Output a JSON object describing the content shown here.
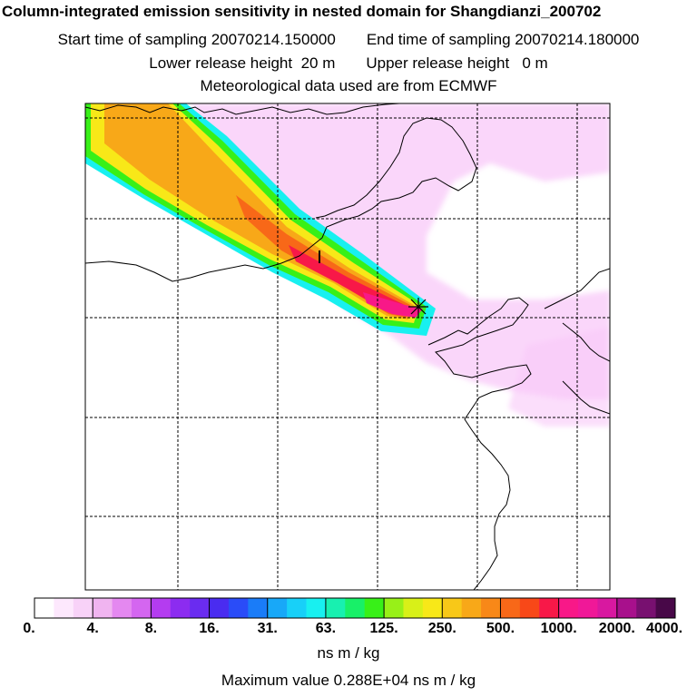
{
  "header": {
    "title": "Column-integrated emission sensitivity in nested domain for Shangdianzi_200702",
    "start_label": "Start time of sampling 20070214.150000",
    "end_label": "End time of sampling 20070214.180000",
    "lower_label": "Lower release height",
    "lower_value": "20 m",
    "upper_label": "Upper release height",
    "upper_value": "0 m",
    "met_label": "Meteorological data used are from ECMWF"
  },
  "colorbar": {
    "ticks": [
      "0.",
      "4.",
      "8.",
      "16.",
      "31.",
      "63.",
      "125.",
      "250.",
      "500.",
      "1000.",
      "2000.",
      "4000."
    ],
    "colors": [
      "#ffffff",
      "#fde8fd",
      "#f8d2f8",
      "#f0b4f0",
      "#e488f0",
      "#d466f0",
      "#b43cf0",
      "#8c2cf0",
      "#6a2cf0",
      "#4a2cf0",
      "#2a4cf8",
      "#1a7cf8",
      "#18a8f8",
      "#18d0f8",
      "#18f0f0",
      "#18f0b0",
      "#18f068",
      "#38f018",
      "#98f018",
      "#d8f018",
      "#f8e818",
      "#f8c818",
      "#f8a818",
      "#f88818",
      "#f86818",
      "#f84818",
      "#f81848",
      "#f81888",
      "#f01898",
      "#d818a0",
      "#a8108c",
      "#781070",
      "#480848"
    ],
    "units": "ns m / kg"
  },
  "footer": {
    "max_label": "Maximum value  0.288E+04 ns m / kg"
  },
  "map": {
    "receptor_marker": "receptor-cross",
    "plume_colors": {
      "outer": "#f8c8f8",
      "cyan": "#18f0f0",
      "green": "#38f018",
      "yellow": "#f8e818",
      "orange": "#f8a818",
      "deep_orange": "#f86818",
      "red": "#f81848",
      "magenta": "#f81888"
    },
    "coast_color": "#000000",
    "grid_color": "#000000"
  }
}
